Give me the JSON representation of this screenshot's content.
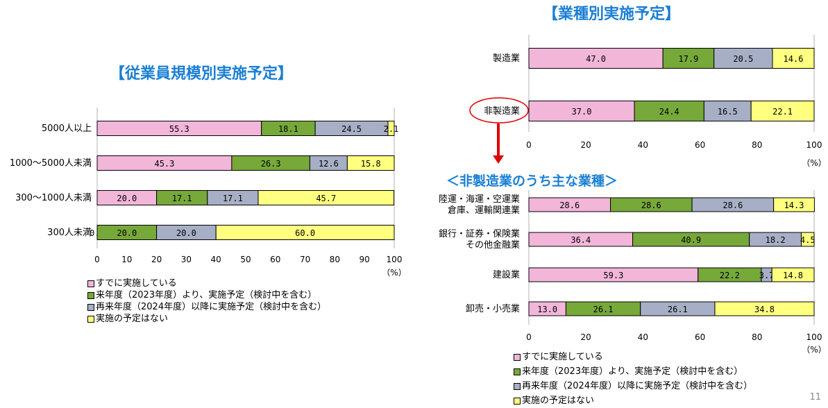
{
  "colors": {
    "pink": "#f2b6d9",
    "green": "#76a83a",
    "gray": "#a7afc6",
    "yellow": "#ffff80",
    "title": "#1a7fd4",
    "arrow": "#e00000"
  },
  "titles": {
    "left": "【従業員規模別実施予定】",
    "right": "【業種別実施予定】",
    "sub": "＜非製造業のうち主な業種＞"
  },
  "legend": [
    "すでに実施している",
    "来年度（2023年度）より、実施予定（検討中を含む）",
    "再来年度（2024年度）以降に実施予定（検討中を含む）",
    "実施の予定はない"
  ],
  "page_number": "11",
  "chart_data": [
    {
      "type": "bar",
      "orientation": "horizontal",
      "stacked": true,
      "title": "【従業員規模別実施予定】",
      "categories": [
        "5000人以上",
        "1000～5000人未満",
        "300～1000人未満",
        "300人未満"
      ],
      "series": [
        {
          "name": "すでに実施している",
          "values": [
            55.3,
            45.3,
            20.0,
            0.0
          ]
        },
        {
          "name": "来年度（2023年度）より、実施予定（検討中を含む）",
          "values": [
            18.1,
            26.3,
            17.1,
            20.0
          ]
        },
        {
          "name": "再来年度（2024年度）以降に実施予定（検討中を含む）",
          "values": [
            24.5,
            12.6,
            17.1,
            20.0
          ]
        },
        {
          "name": "実施の予定はない",
          "values": [
            2.1,
            15.8,
            45.7,
            60.0
          ]
        }
      ],
      "xlim": [
        0,
        100
      ],
      "xticks": [
        0,
        10,
        20,
        30,
        40,
        50,
        60,
        70,
        80,
        90,
        100
      ],
      "unit": "（%）",
      "grid": false,
      "legend_position": "bottom"
    },
    {
      "type": "bar",
      "orientation": "horizontal",
      "stacked": true,
      "title": "【業種別実施予定】",
      "categories": [
        "製造業",
        "非製造業"
      ],
      "series": [
        {
          "name": "すでに実施している",
          "values": [
            47.0,
            37.0
          ]
        },
        {
          "name": "来年度（2023年度）より、実施予定（検討中を含む）",
          "values": [
            17.9,
            24.4
          ]
        },
        {
          "name": "再来年度（2024年度）以降に実施予定（検討中を含む）",
          "values": [
            20.5,
            16.5
          ]
        },
        {
          "name": "実施の予定はない",
          "values": [
            14.6,
            22.1
          ]
        }
      ],
      "xlim": [
        0,
        100
      ],
      "xticks": [
        0,
        20,
        40,
        60,
        80,
        100
      ],
      "unit": "（%）",
      "grid": false,
      "highlight": "非製造業"
    },
    {
      "type": "bar",
      "orientation": "horizontal",
      "stacked": true,
      "title": "＜非製造業のうち主な業種＞",
      "categories": [
        [
          "陸運・海運・空運業",
          "倉庫、運輸関連業"
        ],
        [
          "銀行・証券・保険業",
          "その他金融業"
        ],
        [
          "建設業"
        ],
        [
          "卸売・小売業"
        ]
      ],
      "series": [
        {
          "name": "すでに実施している",
          "values": [
            28.6,
            36.4,
            59.3,
            13.0
          ]
        },
        {
          "name": "来年度（2023年度）より、実施予定（検討中を含む）",
          "values": [
            28.6,
            40.9,
            22.2,
            26.1
          ]
        },
        {
          "name": "再来年度（2024年度）以降に実施予定（検討中を含む）",
          "values": [
            28.6,
            18.2,
            3.7,
            26.1
          ]
        },
        {
          "name": "実施の予定はない",
          "values": [
            14.3,
            4.5,
            14.8,
            34.8
          ]
        }
      ],
      "xlim": [
        0,
        100
      ],
      "xticks": [
        0,
        20,
        40,
        60,
        80,
        100
      ],
      "unit": "（%）",
      "grid": false,
      "legend_position": "bottom"
    }
  ]
}
